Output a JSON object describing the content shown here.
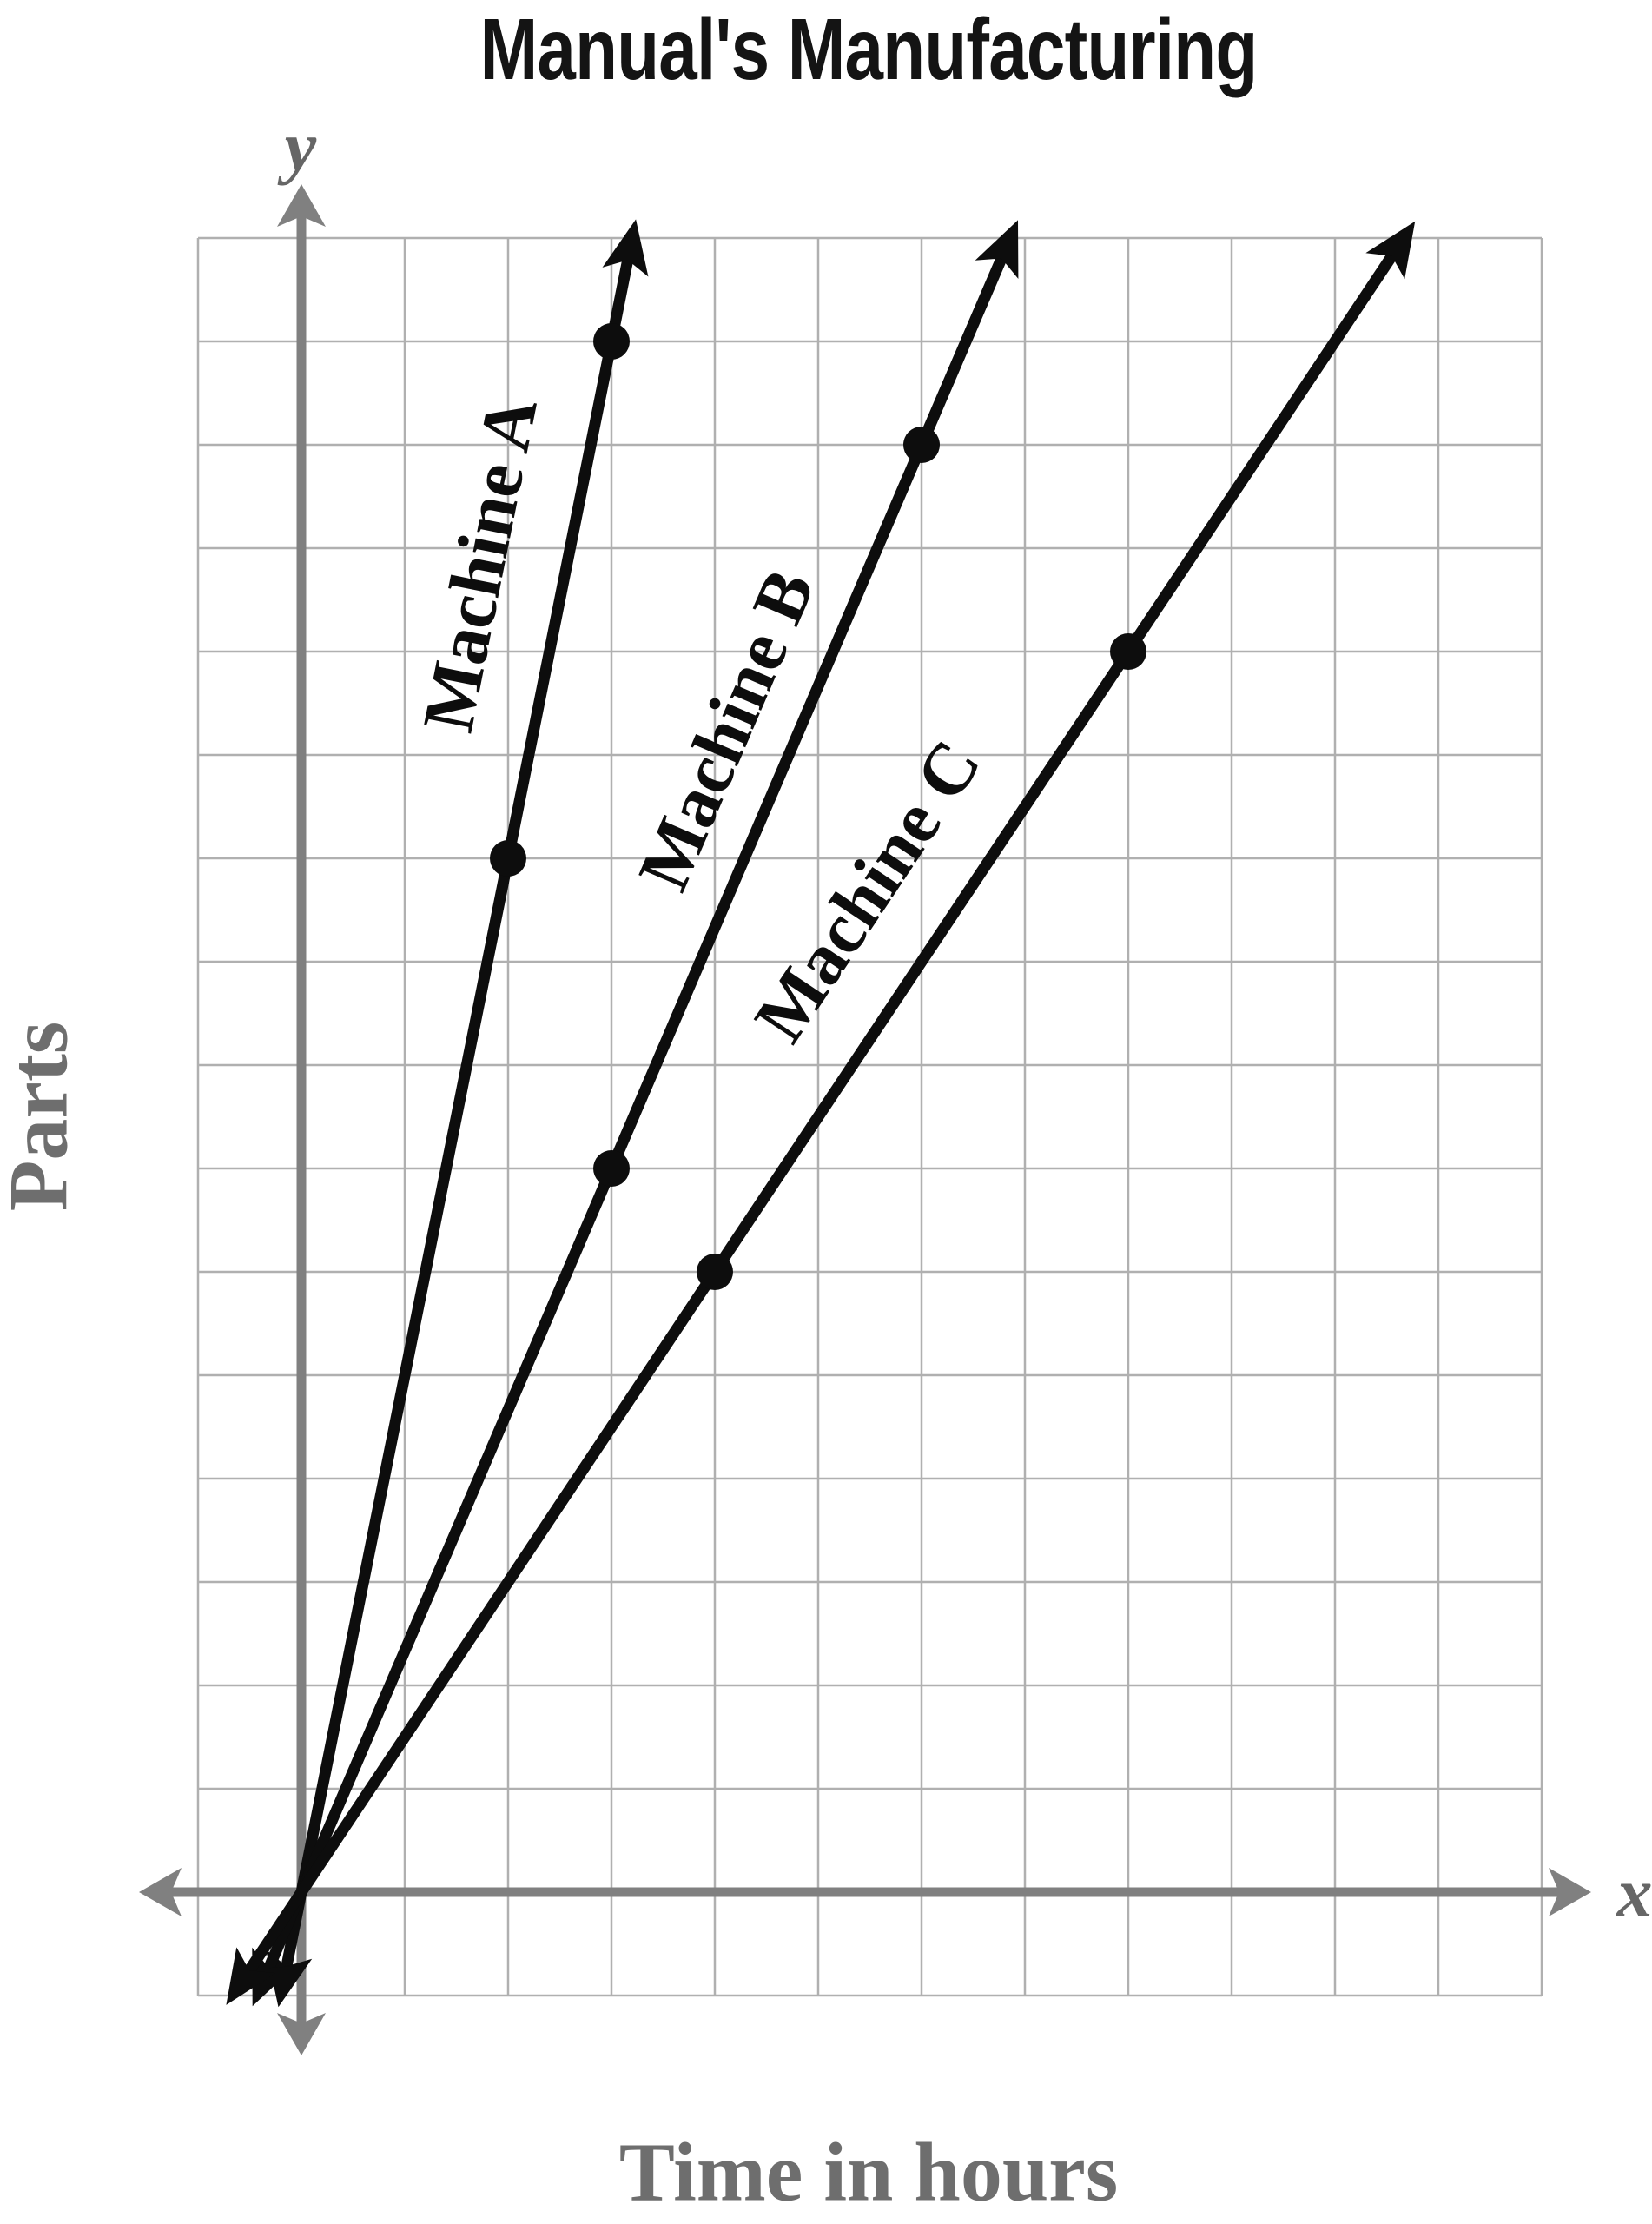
{
  "title": "Manual's Manufacturing",
  "chart_data": {
    "type": "line",
    "title": "Manual's Manufacturing",
    "xlabel": "Time in hours",
    "ylabel": "Parts",
    "x_axis_symbol": "x",
    "y_axis_symbol": "y",
    "grid": true,
    "tick_labels_shown": false,
    "x_range_grid_units": [
      -1,
      12
    ],
    "y_range_grid_units": [
      -1,
      16
    ],
    "series": [
      {
        "name": "Machine A",
        "slope_parts_per_hour": 5,
        "points": [
          [
            2,
            10
          ],
          [
            3,
            15
          ]
        ]
      },
      {
        "name": "Machine B",
        "slope_parts_per_hour": 2.333,
        "points": [
          [
            3,
            7
          ],
          [
            6,
            14
          ]
        ]
      },
      {
        "name": "Machine C",
        "slope_parts_per_hour": 1.5,
        "points": [
          [
            4,
            6
          ],
          [
            8,
            12
          ]
        ]
      }
    ],
    "colors": {
      "series_line": "#0d0d0d",
      "point_dot": "#0d0d0d",
      "grid_line": "#b0b0b0",
      "axis": "#808080",
      "axis_text": "#6e6e6e",
      "title_text": "#141414"
    }
  }
}
